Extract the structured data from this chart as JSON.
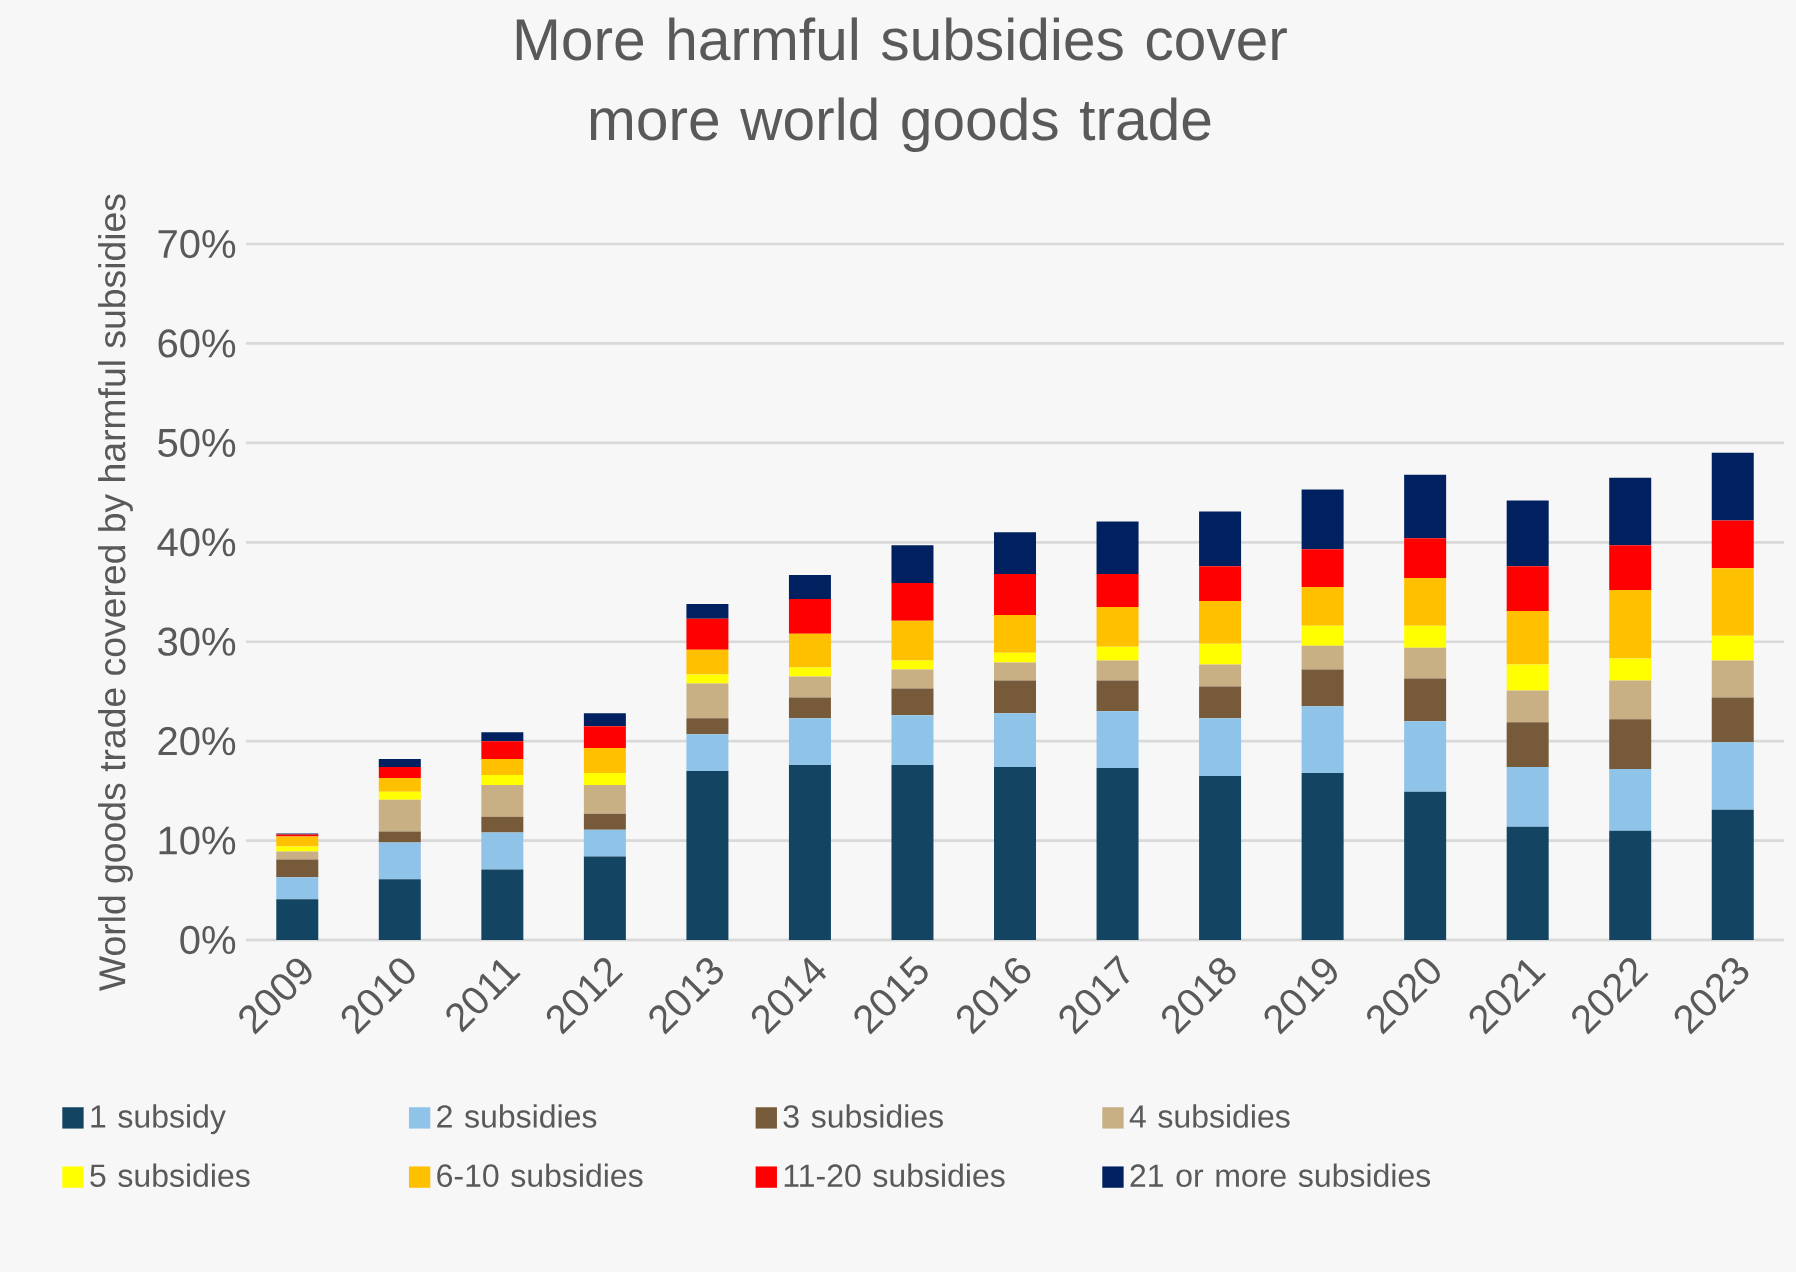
{
  "chart_data": {
    "type": "bar",
    "stacked": true,
    "title": "More harmful subsidies cover more world goods trade",
    "ylabel": "World goods trade covered by harmful subsidies",
    "categories": [
      "2009",
      "2010",
      "2011",
      "2012",
      "2013",
      "2014",
      "2015",
      "2016",
      "2017",
      "2018",
      "2019",
      "2020",
      "2021",
      "2022",
      "2023"
    ],
    "series": [
      {
        "name": "1 subsidy",
        "color": "#134563",
        "values": [
          4.1,
          6.1,
          7.1,
          8.4,
          17.0,
          17.6,
          17.6,
          17.4,
          17.3,
          16.5,
          16.8,
          14.9,
          11.4,
          11.0,
          13.1
        ]
      },
      {
        "name": "2 subsidies",
        "color": "#8fc3e8",
        "values": [
          2.2,
          3.7,
          3.7,
          2.7,
          3.7,
          4.7,
          5.0,
          5.4,
          5.7,
          5.8,
          6.7,
          7.1,
          6.0,
          6.2,
          6.8
        ]
      },
      {
        "name": "3 subsidies",
        "color": "#775a3a",
        "values": [
          1.8,
          1.1,
          1.6,
          1.6,
          1.6,
          2.1,
          2.7,
          3.3,
          3.1,
          3.2,
          3.7,
          4.3,
          4.5,
          5.0,
          4.5
        ]
      },
      {
        "name": "4 subsidies",
        "color": "#c8b084",
        "values": [
          0.8,
          3.2,
          3.2,
          2.9,
          3.5,
          2.1,
          1.9,
          1.8,
          2.0,
          2.2,
          2.4,
          3.1,
          3.2,
          3.9,
          3.7
        ]
      },
      {
        "name": "5 subsidies",
        "color": "#ffff00",
        "values": [
          0.5,
          0.8,
          1.0,
          1.2,
          0.9,
          0.9,
          0.9,
          1.0,
          1.4,
          2.1,
          2.0,
          2.2,
          2.6,
          2.2,
          2.5
        ]
      },
      {
        "name": "6-10 subsidies",
        "color": "#ffc000",
        "values": [
          1.0,
          1.4,
          1.6,
          2.5,
          2.5,
          3.4,
          4.0,
          3.8,
          4.0,
          4.3,
          3.9,
          4.8,
          5.4,
          6.9,
          6.8
        ]
      },
      {
        "name": "11-20 subsidies",
        "color": "#ff0000",
        "values": [
          0.2,
          1.1,
          1.8,
          2.2,
          3.1,
          3.5,
          3.8,
          4.1,
          3.3,
          3.5,
          3.8,
          4.0,
          4.5,
          4.5,
          4.8
        ]
      },
      {
        "name": "21 or more subsidies",
        "color": "#002060",
        "values": [
          0.1,
          0.8,
          0.9,
          1.3,
          1.5,
          2.4,
          3.8,
          4.2,
          5.3,
          5.5,
          6.0,
          6.4,
          6.6,
          6.8,
          6.8
        ]
      }
    ],
    "ylim": [
      0,
      70
    ],
    "yticks": [
      {
        "value": 0,
        "label": "0%"
      },
      {
        "value": 10,
        "label": "10%"
      },
      {
        "value": 20,
        "label": "20%"
      },
      {
        "value": 30,
        "label": "30%"
      },
      {
        "value": 40,
        "label": "40%"
      },
      {
        "value": 50,
        "label": "50%"
      },
      {
        "value": 60,
        "label": "60%"
      },
      {
        "value": 70,
        "label": "70%"
      }
    ],
    "grid": "y",
    "legend": "bottom"
  }
}
